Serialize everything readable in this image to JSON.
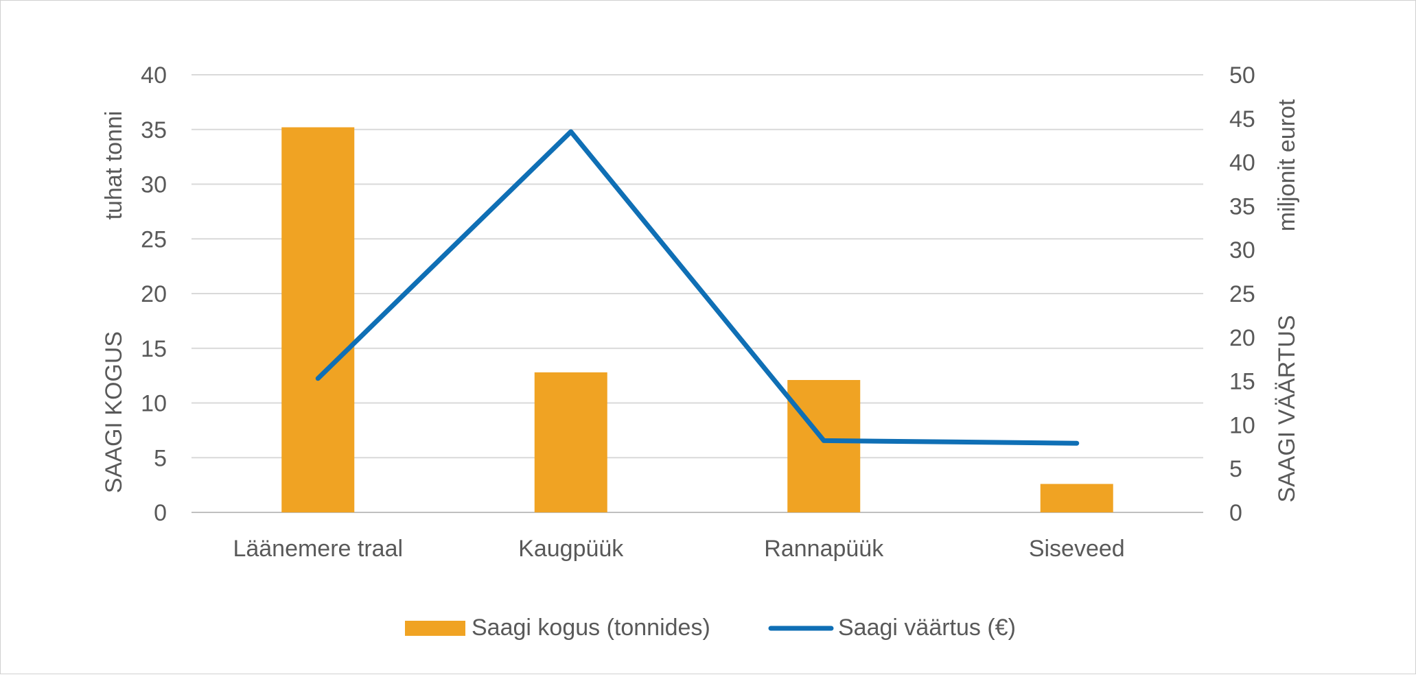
{
  "chart_data": {
    "type": "bar",
    "categories": [
      "Läänemere traal",
      "Kaugpüük",
      "Rannapüük",
      "Siseveed"
    ],
    "series": [
      {
        "name": "Saagi kogus (tonnides)",
        "type": "bar",
        "axis": "left",
        "color": "#F0A323",
        "values": [
          35.2,
          12.8,
          12.1,
          2.6
        ]
      },
      {
        "name": "Saagi väärtus (€)",
        "type": "line",
        "axis": "right",
        "color": "#0F6FB5",
        "values": [
          15.3,
          43.5,
          8.2,
          7.9
        ]
      }
    ],
    "y_left": {
      "label_top": "tuhat tonni",
      "label_bottom": "SAAGI KOGUS",
      "range": [
        0,
        40
      ],
      "ticks": [
        "0",
        "5",
        "10",
        "15",
        "20",
        "25",
        "30",
        "35",
        "40"
      ]
    },
    "y_right": {
      "label_top": "miljonit eurot",
      "label_bottom": "SAAGI VÄÄRTUS",
      "range": [
        0,
        50
      ],
      "ticks": [
        "0",
        "5",
        "10",
        "15",
        "20",
        "25",
        "30",
        "35",
        "40",
        "45",
        "50"
      ]
    },
    "grid": true,
    "legend_position": "bottom"
  }
}
